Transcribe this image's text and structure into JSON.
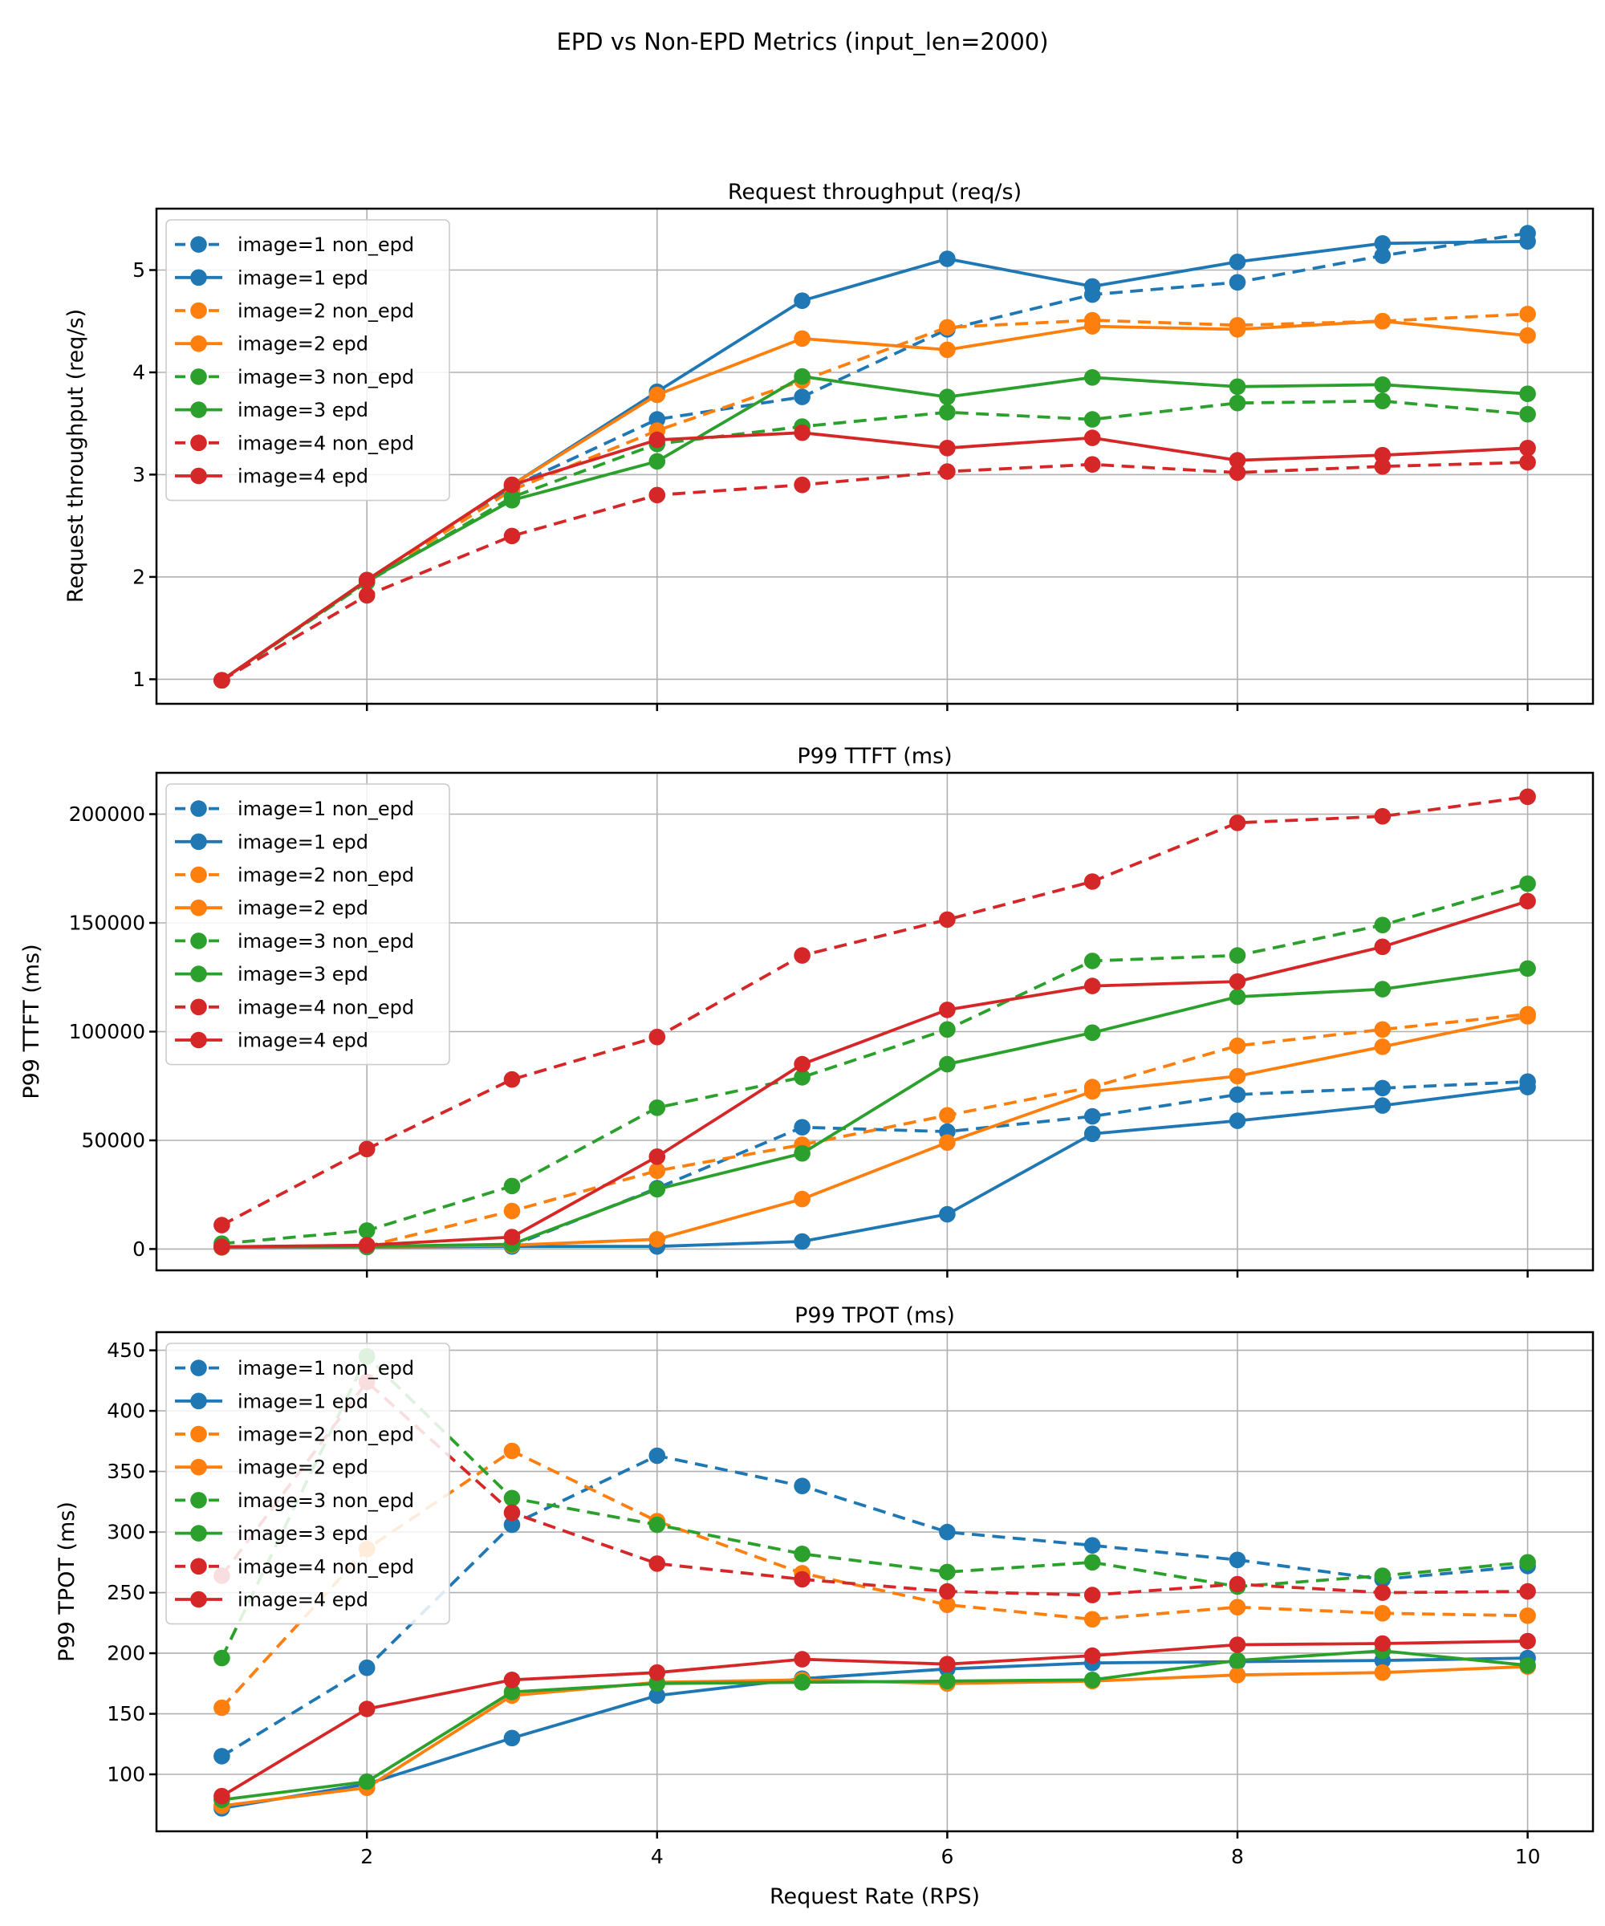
{
  "figure": {
    "title": "EPD vs Non-EPD Metrics (input_len=2000)",
    "xlabel": "Request Rate (RPS)",
    "background": "#ffffff"
  },
  "colors": {
    "image=1": "#1f77b4",
    "image=2": "#ff7f0e",
    "image=3": "#2ca02c",
    "image=4": "#d62728",
    "grid": "#b0b0b0",
    "spine": "#000000",
    "legend_edge": "#cccccc",
    "legend_fill": "#ffffff"
  },
  "x": [
    1,
    2,
    3,
    4,
    5,
    6,
    7,
    8,
    9,
    10
  ],
  "xticks": [
    {
      "v": 2,
      "label": "2"
    },
    {
      "v": 4,
      "label": "4"
    },
    {
      "v": 6,
      "label": "6"
    },
    {
      "v": 8,
      "label": "8"
    },
    {
      "v": 10,
      "label": "10"
    }
  ],
  "legend_labels": [
    "image=1 non_epd",
    "image=1 epd",
    "image=2 non_epd",
    "image=2 epd",
    "image=3 non_epd",
    "image=3 epd",
    "image=4 non_epd",
    "image=4 epd"
  ],
  "chart_data": [
    {
      "type": "line",
      "title": "Request throughput (req/s)",
      "ylabel": "Request throughput (req/s)",
      "grid": true,
      "legend_position": "upper-left",
      "ylim": [
        0.76,
        5.6
      ],
      "yticks": [
        {
          "v": 1,
          "label": "1"
        },
        {
          "v": 2,
          "label": "2"
        },
        {
          "v": 3,
          "label": "3"
        },
        {
          "v": 4,
          "label": "4"
        },
        {
          "v": 5,
          "label": "5"
        }
      ],
      "series": [
        {
          "name": "image=1 non_epd",
          "image": "image=1",
          "color": "#1f77b4",
          "dashed": true,
          "values": [
            0.99,
            1.95,
            2.88,
            3.54,
            3.76,
            4.42,
            4.76,
            4.88,
            5.14,
            5.36
          ]
        },
        {
          "name": "image=1 epd",
          "image": "image=1",
          "color": "#1f77b4",
          "dashed": false,
          "values": [
            0.99,
            1.97,
            2.9,
            3.81,
            4.7,
            5.11,
            4.84,
            5.08,
            5.26,
            5.28
          ]
        },
        {
          "name": "image=2 non_epd",
          "image": "image=2",
          "color": "#ff7f0e",
          "dashed": true,
          "values": [
            0.99,
            1.96,
            2.85,
            3.43,
            3.92,
            4.44,
            4.51,
            4.46,
            4.5,
            4.57
          ]
        },
        {
          "name": "image=2 epd",
          "image": "image=2",
          "color": "#ff7f0e",
          "dashed": false,
          "values": [
            0.99,
            1.97,
            2.9,
            3.78,
            4.33,
            4.22,
            4.45,
            4.42,
            4.5,
            4.36
          ]
        },
        {
          "name": "image=3 non_epd",
          "image": "image=3",
          "color": "#2ca02c",
          "dashed": true,
          "values": [
            0.99,
            1.95,
            2.78,
            3.3,
            3.47,
            3.61,
            3.54,
            3.7,
            3.72,
            3.59
          ]
        },
        {
          "name": "image=3 epd",
          "image": "image=3",
          "color": "#2ca02c",
          "dashed": false,
          "values": [
            0.99,
            1.96,
            2.75,
            3.13,
            3.96,
            3.76,
            3.95,
            3.86,
            3.88,
            3.79
          ]
        },
        {
          "name": "image=4 non_epd",
          "image": "image=4",
          "color": "#d62728",
          "dashed": true,
          "values": [
            0.99,
            1.82,
            2.4,
            2.8,
            2.9,
            3.03,
            3.1,
            3.02,
            3.08,
            3.12
          ]
        },
        {
          "name": "image=4 epd",
          "image": "image=4",
          "color": "#d62728",
          "dashed": false,
          "values": [
            0.99,
            1.97,
            2.9,
            3.34,
            3.41,
            3.26,
            3.36,
            3.14,
            3.19,
            3.26
          ]
        }
      ]
    },
    {
      "type": "line",
      "title": "P99 TTFT (ms)",
      "ylabel": "P99 TTFT (ms)",
      "grid": true,
      "legend_position": "upper-left",
      "ylim": [
        -9800,
        219000
      ],
      "yticks": [
        {
          "v": 0,
          "label": "0"
        },
        {
          "v": 50000,
          "label": "50000"
        },
        {
          "v": 100000,
          "label": "100000"
        },
        {
          "v": 150000,
          "label": "150000"
        },
        {
          "v": 200000,
          "label": "200000"
        }
      ],
      "series": [
        {
          "name": "image=1 non_epd",
          "image": "image=1",
          "color": "#1f77b4",
          "dashed": true,
          "values": [
            1000,
            1500,
            1500,
            28000,
            56000,
            54000,
            61000,
            71000,
            74000,
            77000
          ]
        },
        {
          "name": "image=1 epd",
          "image": "image=1",
          "color": "#1f77b4",
          "dashed": false,
          "values": [
            700,
            900,
            1200,
            1200,
            3500,
            16000,
            53000,
            59000,
            66000,
            74500
          ]
        },
        {
          "name": "image=2 non_epd",
          "image": "image=2",
          "color": "#ff7f0e",
          "dashed": true,
          "values": [
            900,
            1300,
            17500,
            36000,
            48000,
            61500,
            74500,
            93500,
            101000,
            108000
          ]
        },
        {
          "name": "image=2 epd",
          "image": "image=2",
          "color": "#ff7f0e",
          "dashed": false,
          "values": [
            800,
            1100,
            1800,
            4500,
            23000,
            49000,
            72500,
            79500,
            93000,
            107000
          ]
        },
        {
          "name": "image=3 non_epd",
          "image": "image=3",
          "color": "#2ca02c",
          "dashed": true,
          "values": [
            2500,
            8500,
            29000,
            65000,
            79000,
            101000,
            132500,
            135000,
            149000,
            168000
          ]
        },
        {
          "name": "image=3 epd",
          "image": "image=3",
          "color": "#2ca02c",
          "dashed": false,
          "values": [
            900,
            1200,
            2200,
            27500,
            44000,
            85000,
            99500,
            116000,
            119500,
            129000
          ]
        },
        {
          "name": "image=4 non_epd",
          "image": "image=4",
          "color": "#d62728",
          "dashed": true,
          "values": [
            11000,
            46000,
            78000,
            97500,
            135000,
            151500,
            169000,
            196000,
            199000,
            208000
          ]
        },
        {
          "name": "image=4 epd",
          "image": "image=4",
          "color": "#d62728",
          "dashed": false,
          "values": [
            1000,
            1800,
            5500,
            42500,
            85000,
            110000,
            121000,
            123000,
            139000,
            160000
          ]
        }
      ]
    },
    {
      "type": "line",
      "title": "P99 TPOT (ms)",
      "ylabel": "P99 TPOT (ms)",
      "grid": true,
      "legend_position": "upper-left",
      "ylim": [
        53,
        465
      ],
      "yticks": [
        {
          "v": 100,
          "label": "100"
        },
        {
          "v": 150,
          "label": "150"
        },
        {
          "v": 200,
          "label": "200"
        },
        {
          "v": 250,
          "label": "250"
        },
        {
          "v": 300,
          "label": "300"
        },
        {
          "v": 350,
          "label": "350"
        },
        {
          "v": 400,
          "label": "400"
        },
        {
          "v": 450,
          "label": "450"
        }
      ],
      "series": [
        {
          "name": "image=1 non_epd",
          "image": "image=1",
          "color": "#1f77b4",
          "dashed": true,
          "values": [
            115,
            188,
            306,
            363,
            338,
            300,
            289,
            277,
            261,
            272
          ]
        },
        {
          "name": "image=1 epd",
          "image": "image=1",
          "color": "#1f77b4",
          "dashed": false,
          "values": [
            72,
            92,
            130,
            165,
            179,
            187,
            192,
            193,
            194,
            196
          ]
        },
        {
          "name": "image=2 non_epd",
          "image": "image=2",
          "color": "#ff7f0e",
          "dashed": true,
          "values": [
            155,
            286,
            367,
            309,
            266,
            240,
            228,
            238,
            233,
            231
          ]
        },
        {
          "name": "image=2 epd",
          "image": "image=2",
          "color": "#ff7f0e",
          "dashed": false,
          "values": [
            74,
            89,
            165,
            176,
            178,
            175,
            177,
            182,
            184,
            189
          ]
        },
        {
          "name": "image=3 non_epd",
          "image": "image=3",
          "color": "#2ca02c",
          "dashed": true,
          "values": [
            196,
            445,
            328,
            306,
            282,
            267,
            275,
            255,
            264,
            275
          ]
        },
        {
          "name": "image=3 epd",
          "image": "image=3",
          "color": "#2ca02c",
          "dashed": false,
          "values": [
            79,
            94,
            168,
            175,
            176,
            177,
            178,
            194,
            202,
            190
          ]
        },
        {
          "name": "image=4 non_epd",
          "image": "image=4",
          "color": "#d62728",
          "dashed": true,
          "values": [
            264,
            424,
            316,
            274,
            261,
            251,
            248,
            257,
            250,
            251
          ]
        },
        {
          "name": "image=4 epd",
          "image": "image=4",
          "color": "#d62728",
          "dashed": false,
          "values": [
            82,
            154,
            178,
            184,
            195,
            191,
            198,
            207,
            208,
            210
          ]
        }
      ]
    }
  ]
}
